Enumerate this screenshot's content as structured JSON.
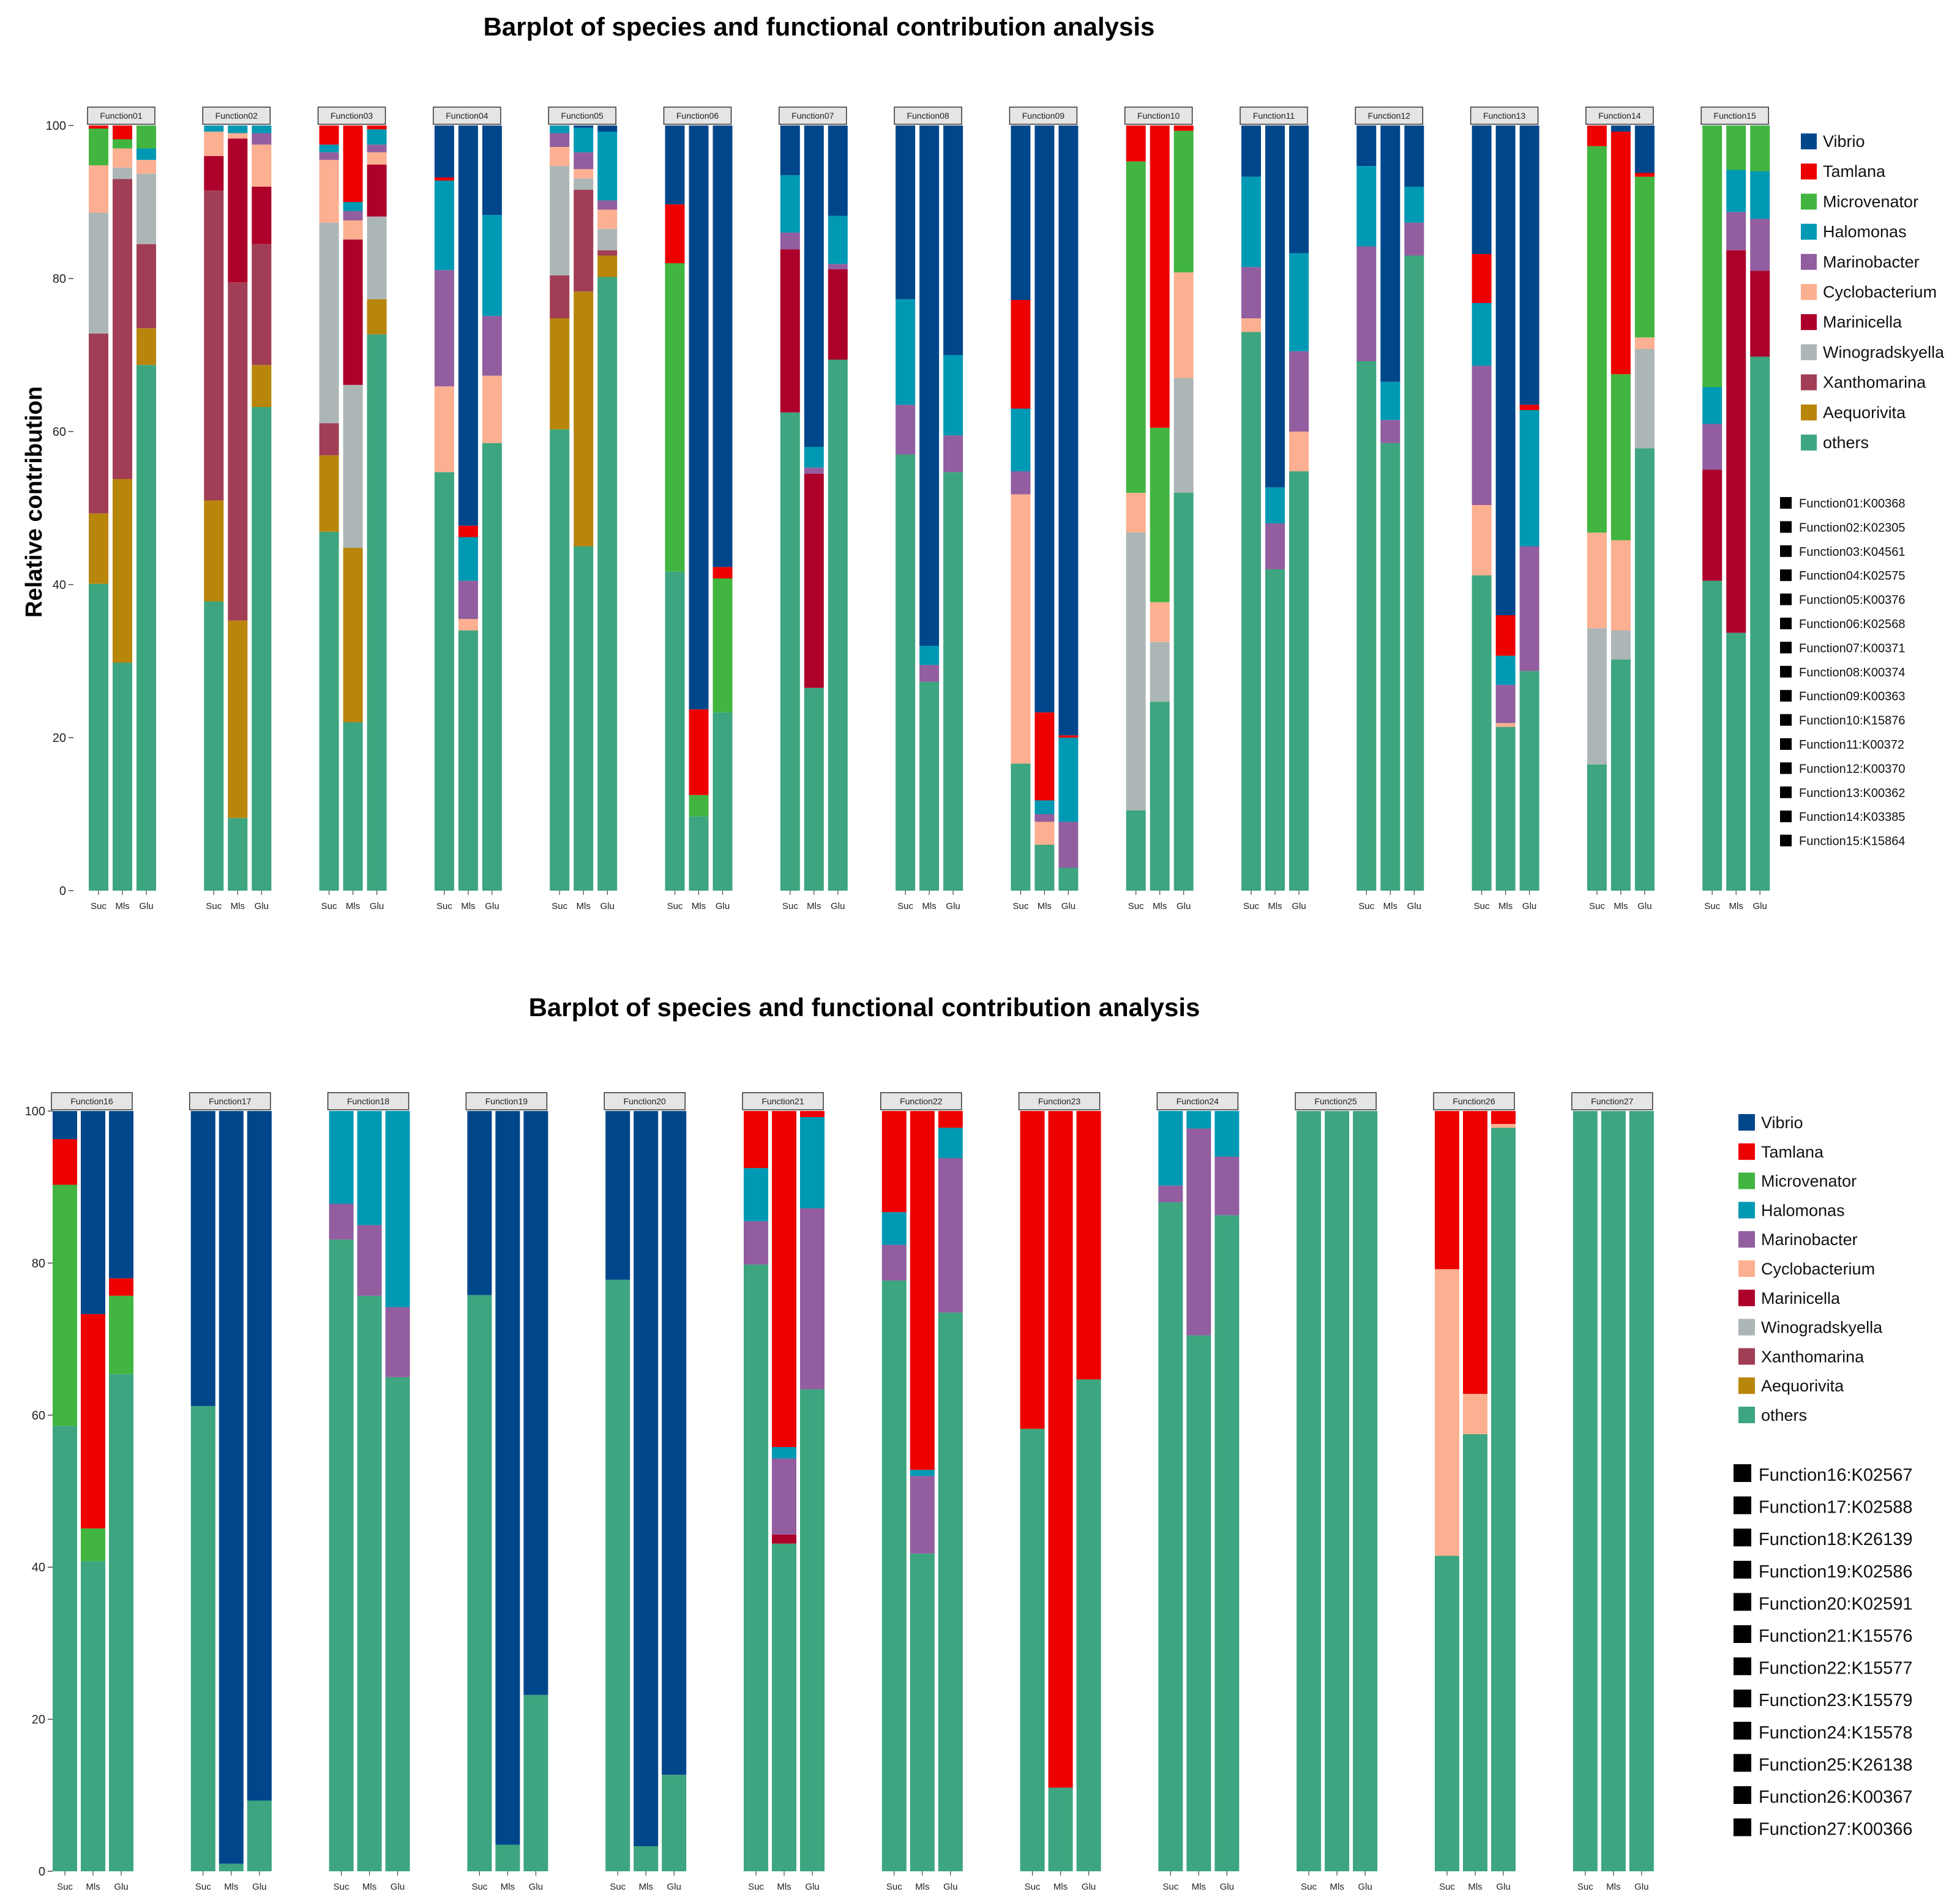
{
  "chart_data": [
    {
      "type": "bar",
      "subtype": "stacked-faceted",
      "title": "Barplot of species and functional contribution analysis",
      "ylabel": "Relative contribution",
      "xlabel": "",
      "ylim": [
        0,
        100
      ],
      "yticks": [
        "0",
        "20",
        "40",
        "60",
        "80",
        "100"
      ],
      "categories": [
        "Suc",
        "Mls",
        "Glu"
      ],
      "legend_position": "right",
      "facets": [
        {
          "label": "Function01",
          "bars": [
            {
              "Aequorivita": 9.2,
              "Xanthomarina": 23.5,
              "Winogradskyella": 15.8,
              "Cyclobacterium": 6.2,
              "Microvenator": 4.8,
              "Tamlana": 0.4,
              "others": 40.1
            },
            {
              "Aequorivita": 24.0,
              "Xanthomarina": 39.2,
              "Winogradskyella": 1.5,
              "Cyclobacterium": 2.5,
              "Microvenator": 1.2,
              "Tamlana": 1.8,
              "others": 29.8
            },
            {
              "Aequorivita": 4.8,
              "Xanthomarina": 11.0,
              "Winogradskyella": 9.2,
              "Cyclobacterium": 1.8,
              "Halomonas": 1.5,
              "Microvenator": 3.0,
              "others": 68.7
            }
          ]
        },
        {
          "label": "Function02",
          "bars": [
            {
              "Aequorivita": 13.2,
              "Xanthomarina": 40.5,
              "Marinicella": 4.5,
              "Cyclobacterium": 3.2,
              "Halomonas": 0.8,
              "others": 37.8
            },
            {
              "Aequorivita": 25.8,
              "Xanthomarina": 44.2,
              "Marinicella": 18.8,
              "Cyclobacterium": 0.7,
              "Halomonas": 1.0,
              "others": 9.5
            },
            {
              "Aequorivita": 5.5,
              "Xanthomarina": 15.8,
              "Marinicella": 7.5,
              "Cyclobacterium": 5.5,
              "Marinobacter": 1.5,
              "Halomonas": 1.0,
              "others": 63.2
            }
          ]
        },
        {
          "label": "Function03",
          "bars": [
            {
              "Aequorivita": 10.0,
              "Winogradskyella": 26.2,
              "Xanthomarina": 4.2,
              "Cyclobacterium": 8.2,
              "Marinobacter": 1.0,
              "Halomonas": 1.0,
              "Tamlana": 2.5,
              "others": 46.9
            },
            {
              "Aequorivita": 22.8,
              "Winogradskyella": 21.3,
              "Marinicella": 19.0,
              "Cyclobacterium": 2.5,
              "Marinobacter": 1.2,
              "Halomonas": 1.2,
              "Tamlana": 10.0,
              "others": 22.0
            },
            {
              "Aequorivita": 4.6,
              "Winogradskyella": 10.8,
              "Marinicella": 6.8,
              "Cyclobacterium": 1.6,
              "Marinobacter": 1.0,
              "Halomonas": 2.0,
              "Tamlana": 0.5,
              "others": 72.7
            }
          ]
        },
        {
          "label": "Function04",
          "bars": [
            {
              "Cyclobacterium": 11.2,
              "Marinobacter": 15.2,
              "Halomonas": 11.7,
              "Tamlana": 0.4,
              "Vibrio": 6.8,
              "others": 54.7
            },
            {
              "Cyclobacterium": 1.5,
              "Marinobacter": 5.0,
              "Halomonas": 5.7,
              "Tamlana": 1.5,
              "Vibrio": 52.3,
              "others": 34.0
            },
            {
              "Cyclobacterium": 8.8,
              "Marinobacter": 7.8,
              "Halomonas": 13.2,
              "Vibrio": 11.7,
              "others": 58.5
            }
          ]
        },
        {
          "label": "Function05",
          "bars": [
            {
              "Aequorivita": 14.5,
              "Xanthomarina": 5.6,
              "Winogradskyella": 14.3,
              "Cyclobacterium": 2.5,
              "Marinobacter": 1.8,
              "Halomonas": 1.0,
              "others": 60.3
            },
            {
              "Aequorivita": 33.3,
              "Xanthomarina": 13.3,
              "Winogradskyella": 1.5,
              "Cyclobacterium": 1.2,
              "Marinobacter": 2.2,
              "Halomonas": 3.2,
              "Vibrio": 0.3,
              "others": 45.0
            },
            {
              "Aequorivita": 2.8,
              "Xanthomarina": 0.7,
              "Winogradskyella": 2.8,
              "Cyclobacterium": 2.5,
              "Marinobacter": 1.2,
              "Halomonas": 9.0,
              "Vibrio": 0.8,
              "others": 80.2
            }
          ]
        },
        {
          "label": "Function06",
          "bars": [
            {
              "Microvenator": 40.3,
              "Tamlana": 7.7,
              "Vibrio": 10.3,
              "others": 41.7
            },
            {
              "Microvenator": 2.8,
              "Tamlana": 11.2,
              "Vibrio": 76.3,
              "others": 9.7
            },
            {
              "Microvenator": 17.5,
              "Tamlana": 1.5,
              "Vibrio": 57.7,
              "others": 23.3
            }
          ]
        },
        {
          "label": "Function07",
          "bars": [
            {
              "Marinicella": 21.3,
              "Marinobacter": 2.2,
              "Halomonas": 7.5,
              "Vibrio": 6.5,
              "others": 62.5
            },
            {
              "Marinicella": 28.0,
              "Marinobacter": 0.8,
              "Halomonas": 2.7,
              "Vibrio": 42.0,
              "others": 26.5
            },
            {
              "Marinicella": 11.8,
              "Marinobacter": 0.7,
              "Halomonas": 6.3,
              "Vibrio": 11.8,
              "others": 69.4
            }
          ]
        },
        {
          "label": "Function08",
          "bars": [
            {
              "Marinobacter": 6.5,
              "Halomonas": 13.8,
              "Vibrio": 22.7,
              "others": 57.0
            },
            {
              "Marinobacter": 2.2,
              "Halomonas": 2.5,
              "Vibrio": 68.0,
              "others": 27.3
            },
            {
              "Marinobacter": 4.8,
              "Halomonas": 10.5,
              "Vibrio": 30.0,
              "others": 54.7
            }
          ]
        },
        {
          "label": "Function09",
          "bars": [
            {
              "Cyclobacterium": 35.2,
              "Marinobacter": 3.0,
              "Halomonas": 8.2,
              "Tamlana": 14.2,
              "Vibrio": 22.8,
              "others": 16.6
            },
            {
              "Cyclobacterium": 3.0,
              "Marinobacter": 1.0,
              "Halomonas": 1.8,
              "Tamlana": 11.5,
              "Vibrio": 76.7,
              "others": 6.0
            },
            {
              "Marinobacter": 6.0,
              "Halomonas": 11.0,
              "Tamlana": 0.3,
              "Vibrio": 79.7,
              "others": 3.0
            }
          ]
        },
        {
          "label": "Function10",
          "bars": [
            {
              "Winogradskyella": 36.3,
              "Cyclobacterium": 5.2,
              "Microvenator": 43.3,
              "Tamlana": 4.7,
              "others": 10.5
            },
            {
              "Winogradskyella": 7.8,
              "Cyclobacterium": 5.2,
              "Microvenator": 22.8,
              "Tamlana": 39.5,
              "others": 24.7
            },
            {
              "Winogradskyella": 15.0,
              "Cyclobacterium": 13.8,
              "Microvenator": 18.5,
              "Tamlana": 0.7,
              "others": 52.0
            }
          ]
        },
        {
          "label": "Function11",
          "bars": [
            {
              "Cyclobacterium": 1.8,
              "Marinobacter": 6.7,
              "Halomonas": 11.8,
              "Vibrio": 6.7,
              "others": 73.0
            },
            {
              "Marinobacter": 6.0,
              "Halomonas": 4.7,
              "Vibrio": 47.3,
              "others": 42.0
            },
            {
              "Cyclobacterium": 5.2,
              "Marinobacter": 10.5,
              "Halomonas": 12.8,
              "Vibrio": 16.7,
              "others": 54.8
            }
          ]
        },
        {
          "label": "Function12",
          "bars": [
            {
              "Marinobacter": 15.0,
              "Halomonas": 10.5,
              "Vibrio": 5.3,
              "others": 69.2
            },
            {
              "Marinobacter": 3.0,
              "Halomonas": 5.0,
              "Vibrio": 33.5,
              "others": 58.5
            },
            {
              "Marinobacter": 4.3,
              "Halomonas": 4.7,
              "Vibrio": 8.0,
              "others": 83.0
            }
          ]
        },
        {
          "label": "Function13",
          "bars": [
            {
              "Cyclobacterium": 9.2,
              "Marinobacter": 18.2,
              "Halomonas": 8.2,
              "Tamlana": 6.4,
              "Vibrio": 16.8,
              "others": 41.2
            },
            {
              "Cyclobacterium": 0.5,
              "Marinobacter": 5.0,
              "Halomonas": 3.8,
              "Tamlana": 5.3,
              "Vibrio": 64.0,
              "others": 21.4
            },
            {
              "Marinobacter": 16.3,
              "Halomonas": 17.8,
              "Tamlana": 0.7,
              "Vibrio": 36.5,
              "others": 28.7
            }
          ]
        },
        {
          "label": "Function14",
          "bars": [
            {
              "Winogradskyella": 17.8,
              "Cyclobacterium": 12.5,
              "Microvenator": 50.5,
              "Tamlana": 2.7,
              "others": 16.5
            },
            {
              "Winogradskyella": 3.8,
              "Cyclobacterium": 11.8,
              "Microvenator": 21.7,
              "Tamlana": 31.7,
              "Vibrio": 0.8,
              "others": 30.2
            },
            {
              "Winogradskyella": 13.0,
              "Cyclobacterium": 1.5,
              "Microvenator": 21.0,
              "Tamlana": 0.5,
              "Vibrio": 6.2,
              "others": 57.8
            }
          ]
        },
        {
          "label": "Function15",
          "bars": [
            {
              "Marinicella": 14.5,
              "Marinobacter": 6.0,
              "Halomonas": 4.8,
              "Microvenator": 34.2,
              "others": 40.5
            },
            {
              "Marinicella": 50.0,
              "Marinobacter": 5.0,
              "Halomonas": 5.5,
              "Microvenator": 5.8,
              "others": 33.7
            },
            {
              "Marinicella": 11.2,
              "Marinobacter": 6.8,
              "Halomonas": 6.2,
              "Microvenator": 6.0,
              "others": 69.8
            }
          ]
        }
      ],
      "species_legend": [
        "Vibrio",
        "Tamlana",
        "Microvenator",
        "Halomonas",
        "Marinobacter",
        "Cyclobacterium",
        "Marinicella",
        "Winogradskyella",
        "Xanthomarina",
        "Aequorivita",
        "others"
      ],
      "function_legend": [
        "Function01:K00368",
        "Function02:K02305",
        "Function03:K04561",
        "Function04:K02575",
        "Function05:K00376",
        "Function06:K02568",
        "Function07:K00371",
        "Function08:K00374",
        "Function09:K00363",
        "Function10:K15876",
        "Function11:K00372",
        "Function12:K00370",
        "Function13:K00362",
        "Function14:K03385",
        "Function15:K15864"
      ]
    },
    {
      "type": "bar",
      "subtype": "stacked-faceted",
      "title": "Barplot of species and functional contribution analysis",
      "ylabel": "",
      "xlabel": "",
      "ylim": [
        0,
        100
      ],
      "yticks": [
        "0",
        "20",
        "40",
        "60",
        "80",
        "100"
      ],
      "categories": [
        "Suc",
        "Mls",
        "Glu"
      ],
      "legend_position": "right",
      "facets": [
        {
          "label": "Function16",
          "bars": [
            {
              "Microvenator": 31.7,
              "Tamlana": 6.0,
              "Vibrio": 3.7,
              "others": 58.6
            },
            {
              "Microvenator": 4.3,
              "Tamlana": 28.2,
              "Vibrio": 26.7,
              "others": 40.8
            },
            {
              "Microvenator": 10.3,
              "Tamlana": 2.3,
              "Vibrio": 22.0,
              "others": 65.4
            }
          ]
        },
        {
          "label": "Function17",
          "bars": [
            {
              "Vibrio": 38.8,
              "others": 61.2
            },
            {
              "Vibrio": 99.0,
              "others": 1.0
            },
            {
              "Vibrio": 90.7,
              "others": 9.3
            }
          ]
        },
        {
          "label": "Function18",
          "bars": [
            {
              "Marinobacter": 4.7,
              "Halomonas": 12.2,
              "others": 83.1
            },
            {
              "Marinobacter": 9.3,
              "Halomonas": 15.0,
              "others": 75.7
            },
            {
              "Marinobacter": 9.2,
              "Halomonas": 25.8,
              "others": 65.0
            }
          ]
        },
        {
          "label": "Function19",
          "bars": [
            {
              "Vibrio": 24.2,
              "others": 75.8
            },
            {
              "Vibrio": 96.5,
              "others": 3.5
            },
            {
              "Vibrio": 76.8,
              "others": 23.2
            }
          ]
        },
        {
          "label": "Function20",
          "bars": [
            {
              "Vibrio": 22.2,
              "others": 77.8
            },
            {
              "Vibrio": 96.7,
              "others": 3.3
            },
            {
              "Vibrio": 87.3,
              "others": 12.7
            }
          ]
        },
        {
          "label": "Function21",
          "bars": [
            {
              "Marinobacter": 5.7,
              "Halomonas": 7.0,
              "Tamlana": 7.5,
              "others": 79.8
            },
            {
              "Marinicella": 1.2,
              "Marinobacter": 10.0,
              "Halomonas": 1.5,
              "Tamlana": 44.2,
              "others": 43.1
            },
            {
              "Marinobacter": 23.8,
              "Halomonas": 12.0,
              "Tamlana": 0.8,
              "others": 63.4
            }
          ]
        },
        {
          "label": "Function22",
          "bars": [
            {
              "Marinobacter": 4.7,
              "Halomonas": 4.3,
              "Tamlana": 13.3,
              "others": 77.7
            },
            {
              "Marinobacter": 10.2,
              "Halomonas": 0.8,
              "Tamlana": 47.2,
              "others": 41.8
            },
            {
              "Marinobacter": 20.3,
              "Halomonas": 4.0,
              "Tamlana": 2.2,
              "others": 73.5
            }
          ]
        },
        {
          "label": "Function23",
          "bars": [
            {
              "Tamlana": 41.8,
              "others": 58.2
            },
            {
              "Tamlana": 89.0,
              "others": 11.0
            },
            {
              "Tamlana": 35.3,
              "others": 64.7
            }
          ]
        },
        {
          "label": "Function24",
          "bars": [
            {
              "Marinobacter": 2.2,
              "Halomonas": 9.8,
              "others": 88.0
            },
            {
              "Marinobacter": 27.2,
              "Halomonas": 2.3,
              "others": 70.5
            },
            {
              "Marinobacter": 7.7,
              "Halomonas": 6.0,
              "others": 86.3
            }
          ]
        },
        {
          "label": "Function25",
          "bars": [
            {
              "others": 100
            },
            {
              "others": 100
            },
            {
              "others": 100
            }
          ]
        },
        {
          "label": "Function26",
          "bars": [
            {
              "Cyclobacterium": 37.7,
              "Tamlana": 20.8,
              "others": 41.5
            },
            {
              "Cyclobacterium": 5.3,
              "Tamlana": 37.2,
              "others": 57.5
            },
            {
              "Cyclobacterium": 0.5,
              "Tamlana": 1.7,
              "others": 97.8
            }
          ]
        },
        {
          "label": "Function27",
          "bars": [
            {
              "others": 100
            },
            {
              "others": 100
            },
            {
              "others": 100
            }
          ]
        }
      ],
      "species_legend": [
        "Vibrio",
        "Tamlana",
        "Microvenator",
        "Halomonas",
        "Marinobacter",
        "Cyclobacterium",
        "Marinicella",
        "Winogradskyella",
        "Xanthomarina",
        "Aequorivita",
        "others"
      ],
      "function_legend": [
        "Function16:K02567",
        "Function17:K02588",
        "Function18:K26139",
        "Function19:K02586",
        "Function20:K02591",
        "Function21:K15576",
        "Function22:K15577",
        "Function23:K15579",
        "Function24:K15578",
        "Function25:K26138",
        "Function26:K00367",
        "Function27:K00366"
      ]
    }
  ],
  "colors": {
    "Vibrio": "#00468B",
    "Tamlana": "#ED0000",
    "Microvenator": "#42B540",
    "Halomonas": "#0099B4",
    "Marinobacter": "#925E9F",
    "Cyclobacterium": "#FDAF91",
    "Marinicella": "#AD002A",
    "Winogradskyella": "#ADB6B6",
    "Xanthomarina": "#A13E55",
    "Aequorivita": "#B8860B",
    "others": "#3DA57F",
    "strip_fill": "#e5e5e5",
    "legend_key": "#000000"
  }
}
